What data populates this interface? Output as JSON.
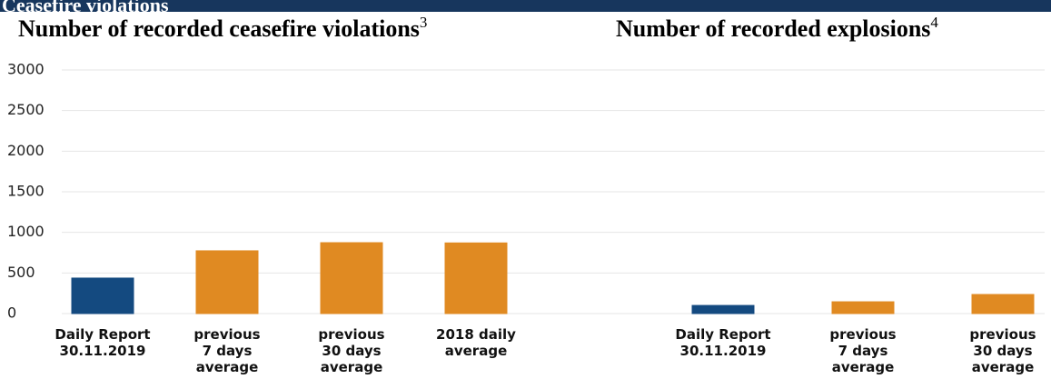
{
  "header": {
    "title": "Ceasefire violations"
  },
  "chart_data": [
    {
      "type": "bar",
      "title": "Number of recorded ceasefire violations",
      "footnote": "3",
      "categories": [
        "Daily Report\n30.11.2019",
        "previous\n7 days\naverage",
        "previous\n30 days\naverage",
        "2018 daily\naverage"
      ],
      "values": [
        437,
        773,
        873,
        870
      ],
      "colors": [
        "#144a80",
        "#e08a22",
        "#e08a22",
        "#e08a22"
      ],
      "ylim": [
        0,
        3000
      ],
      "yticks": [
        0,
        500,
        1000,
        1500,
        2000,
        2500,
        3000
      ],
      "grid": true
    },
    {
      "type": "bar",
      "title": "Number of recorded explosions",
      "footnote": "4",
      "categories": [
        "Daily Report\n30.11.2019",
        "previous\n7 days\naverage",
        "previous\n30 days\naverage"
      ],
      "values": [
        100,
        145,
        235
      ],
      "colors": [
        "#144a80",
        "#e08a22",
        "#e08a22"
      ],
      "ylim": [
        0,
        3000
      ]
    }
  ]
}
